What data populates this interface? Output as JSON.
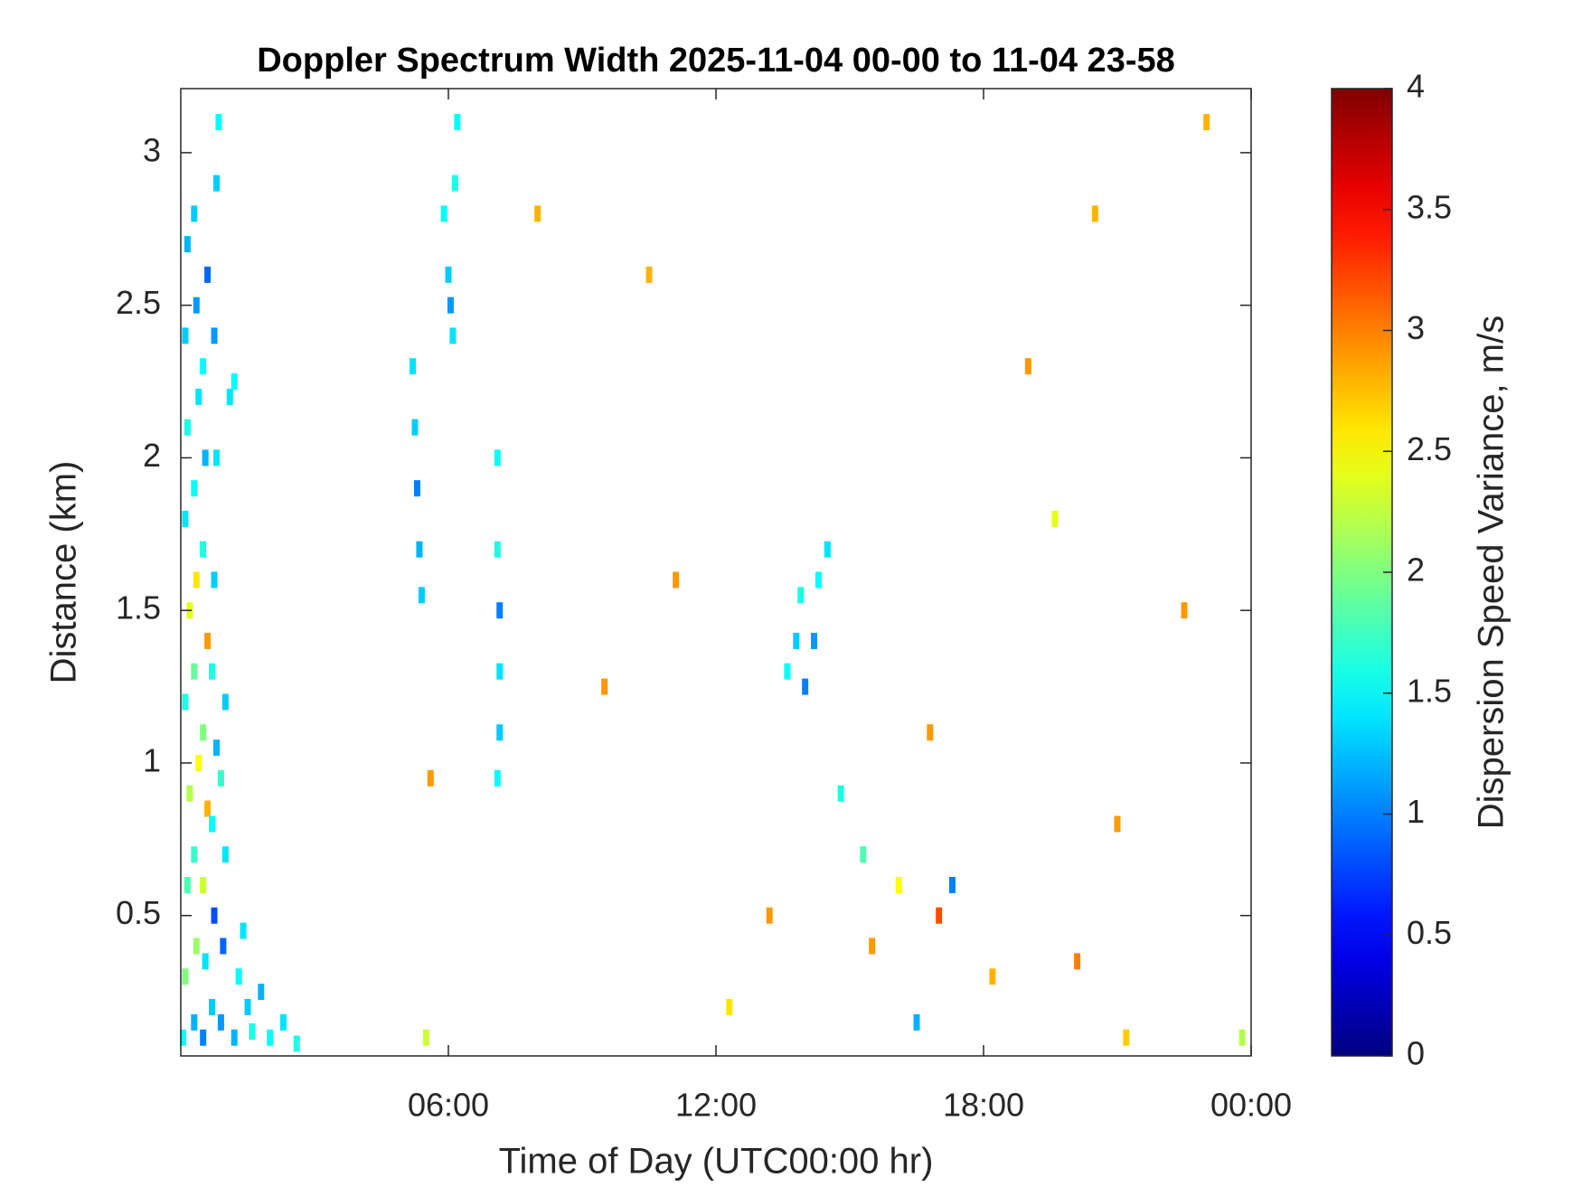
{
  "chart_data": {
    "type": "heatmap",
    "title": "Doppler Spectrum Width 2025-11-04 00-00 to 11-04 23-58",
    "x_label": "Time of Day (UTC00:00 hr)",
    "y_label": "Distance (km)",
    "colorbar_label": "Dispersion Speed Variance, m/s",
    "colormap": "jet",
    "clim": [
      0,
      4
    ],
    "cticks": [
      0,
      0.5,
      1,
      1.5,
      2,
      2.5,
      3,
      3.5,
      4
    ],
    "xlim": [
      0,
      24
    ],
    "xticks": [
      {
        "value": 6,
        "label": "06:00"
      },
      {
        "value": 12,
        "label": "12:00"
      },
      {
        "value": 18,
        "label": "18:00"
      },
      {
        "value": 24,
        "label": "00:00"
      }
    ],
    "ylim": [
      0.04,
      3.21
    ],
    "yticks": [
      0.5,
      1,
      1.5,
      2,
      2.5,
      3
    ],
    "x": [
      0.05,
      0.1,
      0.15,
      0.2,
      0.1,
      0.2,
      0.1,
      0.15,
      0.1,
      0.15,
      0.3,
      0.35,
      0.3,
      0.4,
      0.3,
      0.35,
      0.3,
      0.4,
      0.35,
      0.3,
      0.5,
      0.55,
      0.5,
      0.6,
      0.5,
      0.6,
      0.5,
      0.55,
      0.5,
      0.6,
      0.7,
      0.75,
      0.7,
      0.8,
      0.7,
      0.75,
      0.8,
      0.75,
      0.8,
      0.85,
      0.9,
      0.95,
      1.0,
      0.9,
      1.0,
      1.1,
      1.2,
      1.2,
      1.3,
      1.4,
      1.5,
      1.6,
      1.8,
      2.0,
      2.3,
      2.6,
      5.2,
      5.25,
      5.3,
      5.35,
      5.4,
      5.9,
      6.0,
      6.05,
      6.1,
      6.15,
      6.2,
      7.1,
      7.1,
      7.15,
      7.15,
      7.15,
      7.1,
      13.6,
      13.8,
      13.9,
      14.0,
      14.2,
      14.3,
      14.5,
      5.6,
      5.5,
      8.0,
      9.5,
      10.5,
      11.1,
      12.3,
      15.5,
      16.1,
      16.8,
      17.0,
      17.3,
      18.2,
      19.0,
      20.1,
      20.5,
      21.0,
      21.2,
      22.5,
      23.0,
      23.8,
      14.8,
      15.3,
      16.5,
      19.6,
      13.2
    ],
    "y": [
      0.1,
      0.3,
      0.6,
      0.9,
      1.2,
      1.5,
      1.8,
      2.1,
      2.4,
      2.7,
      0.15,
      0.4,
      0.7,
      1.0,
      1.3,
      1.6,
      1.9,
      2.2,
      2.5,
      2.8,
      0.1,
      0.35,
      0.6,
      0.85,
      1.1,
      1.4,
      1.7,
      2.0,
      2.3,
      2.6,
      0.2,
      0.5,
      0.8,
      1.05,
      1.3,
      1.6,
      2.0,
      2.4,
      2.9,
      3.1,
      0.15,
      0.4,
      0.7,
      0.95,
      1.2,
      2.2,
      2.25,
      0.1,
      0.3,
      0.45,
      0.2,
      0.12,
      0.25,
      0.1,
      0.15,
      0.08,
      2.3,
      2.1,
      1.9,
      1.7,
      1.55,
      2.8,
      2.6,
      2.5,
      2.4,
      2.9,
      3.1,
      2.0,
      1.7,
      1.5,
      1.3,
      1.1,
      0.95,
      1.3,
      1.4,
      1.55,
      1.25,
      1.4,
      1.6,
      1.7,
      0.95,
      0.1,
      2.8,
      1.25,
      2.6,
      1.6,
      0.2,
      0.4,
      0.6,
      1.1,
      0.5,
      0.6,
      0.3,
      2.3,
      0.35,
      2.8,
      0.8,
      0.1,
      1.5,
      3.1,
      0.1,
      0.9,
      0.7,
      0.15,
      1.8,
      0.5
    ],
    "values": [
      1.5,
      2.0,
      1.8,
      2.2,
      1.6,
      2.4,
      1.4,
      1.6,
      1.3,
      1.2,
      1.2,
      2.1,
      1.7,
      2.5,
      1.9,
      2.6,
      1.5,
      1.4,
      1.1,
      1.3,
      1.0,
      1.4,
      2.3,
      2.8,
      2.0,
      2.9,
      1.6,
      1.2,
      1.5,
      0.9,
      1.3,
      0.8,
      1.5,
      1.2,
      1.6,
      1.3,
      1.4,
      1.1,
      1.3,
      1.5,
      1.1,
      0.9,
      1.4,
      1.7,
      1.3,
      1.4,
      1.5,
      1.2,
      1.5,
      1.4,
      1.3,
      1.6,
      1.2,
      1.5,
      1.4,
      1.6,
      1.4,
      1.3,
      1.0,
      1.2,
      1.3,
      1.5,
      1.3,
      1.1,
      1.4,
      1.6,
      1.5,
      1.5,
      1.6,
      1.0,
      1.4,
      1.3,
      1.5,
      1.5,
      1.3,
      1.6,
      1.0,
      1.1,
      1.5,
      1.4,
      2.9,
      2.3,
      2.8,
      2.9,
      2.8,
      2.9,
      2.6,
      2.9,
      2.5,
      2.9,
      3.2,
      1.0,
      2.8,
      2.9,
      3.0,
      2.8,
      2.9,
      2.7,
      2.9,
      2.8,
      2.2,
      1.6,
      1.8,
      1.2,
      2.4,
      2.9
    ]
  }
}
